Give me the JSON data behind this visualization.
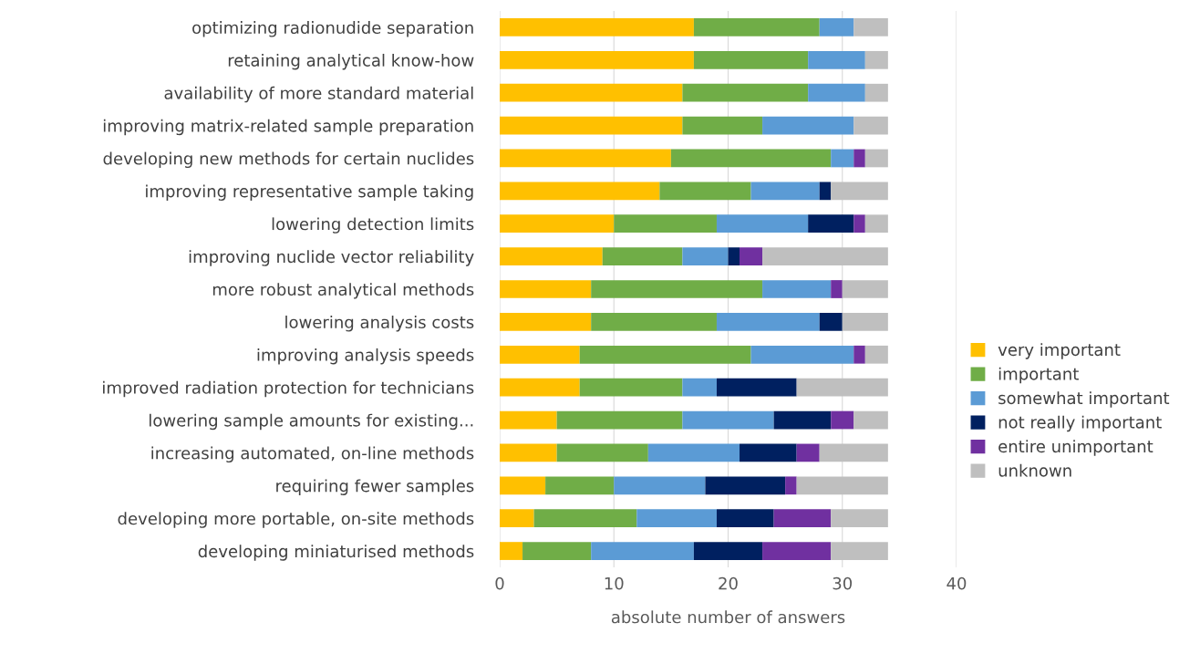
{
  "chart_data": {
    "type": "bar",
    "orientation": "horizontal",
    "stacked": true,
    "xlabel": "absolute number of answers",
    "categories": [
      "optimizing radionudide separation",
      "retaining analytical know-how",
      "availability of more standard material",
      "improving matrix-related sample preparation",
      "developing new methods for certain nuclides",
      "improving representative sample taking",
      "lowering detection limits",
      "improving nuclide vector reliability",
      "more robust analytical methods",
      "lowering analysis costs",
      "improving analysis speeds",
      "improved radiation protection for technicians",
      "lowering sample amounts for existing...",
      "increasing automated, on-line methods",
      "requiring fewer samples",
      "developing more portable, on-site methods",
      "developing miniaturised methods"
    ],
    "series": [
      {
        "name": "very important",
        "color": "#ffc000",
        "values": [
          17,
          17,
          16,
          16,
          15,
          14,
          10,
          9,
          8,
          8,
          7,
          7,
          5,
          5,
          4,
          3,
          2
        ]
      },
      {
        "name": "important",
        "color": "#70ad47",
        "values": [
          11,
          10,
          11,
          7,
          14,
          8,
          9,
          7,
          15,
          11,
          15,
          9,
          11,
          8,
          6,
          9,
          6
        ]
      },
      {
        "name": "somewhat important",
        "color": "#5b9bd5",
        "values": [
          3,
          5,
          5,
          8,
          2,
          6,
          8,
          4,
          6,
          9,
          9,
          3,
          8,
          8,
          8,
          7,
          9
        ]
      },
      {
        "name": "not really important",
        "color": "#002060",
        "values": [
          0,
          0,
          0,
          0,
          0,
          1,
          4,
          1,
          0,
          2,
          0,
          7,
          5,
          5,
          7,
          5,
          6
        ]
      },
      {
        "name": "entire unimportant",
        "color": "#7030a0",
        "values": [
          0,
          0,
          0,
          0,
          1,
          0,
          1,
          2,
          1,
          0,
          1,
          0,
          2,
          2,
          1,
          5,
          6
        ]
      },
      {
        "name": "unknown",
        "color": "#bfbfbf",
        "values": [
          3,
          2,
          2,
          3,
          2,
          5,
          2,
          11,
          4,
          4,
          2,
          8,
          3,
          6,
          8,
          5,
          5
        ]
      }
    ],
    "xlim": [
      0,
      40
    ],
    "xticks": [
      0,
      10,
      20,
      30,
      40
    ],
    "grid": "x",
    "legend": "right"
  }
}
